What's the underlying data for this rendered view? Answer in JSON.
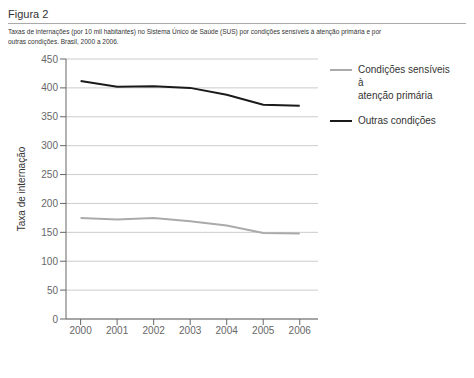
{
  "chart_data": {
    "type": "line",
    "title": "Figura 2",
    "subtitle": [
      "Taxas de internações (por 10 mil habitantes) no Sistema Único de Saúde (SUS) por condições sensíveis à atenção primária e por",
      "outras condições. Brasil, 2000 a 2006."
    ],
    "ylabel": "Taxa de internação",
    "x": [
      2000,
      2001,
      2002,
      2003,
      2004,
      2005,
      2006
    ],
    "series": [
      {
        "name": "Condições sensíveis à\natenção primária",
        "color": "#aaaaaa",
        "values": [
          175,
          172,
          175,
          169,
          162,
          149,
          148
        ]
      },
      {
        "name": "Outras condições",
        "color": "#1a1a1a",
        "values": [
          412,
          402,
          403,
          400,
          388,
          371,
          369
        ]
      }
    ],
    "xlim": [
      1999.6,
      2006.5
    ],
    "xticks": [
      2000,
      2001,
      2002,
      2003,
      2004,
      2005,
      2006
    ],
    "ylim": [
      0,
      450
    ],
    "yticks": [
      0,
      50,
      100,
      150,
      200,
      250,
      300,
      350,
      400,
      450
    ],
    "grid": true,
    "legend": "right"
  }
}
